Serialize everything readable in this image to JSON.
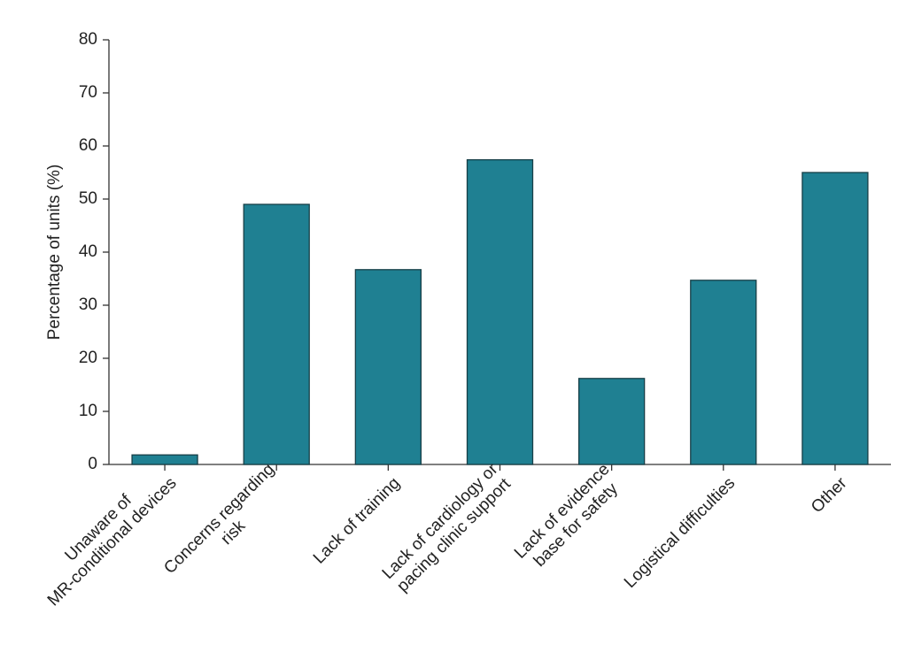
{
  "chart_data": {
    "type": "bar",
    "y_label": "Percentage of units (%)",
    "categories": [
      "Unaware of\nMR-conditional devices",
      "Concerns regarding\nrisk",
      "Lack of training",
      "Lack of cardiology or\npacing clinic support",
      "Lack of evidence\nbase for safety",
      "Logistical difficulties",
      "Other"
    ],
    "values": [
      1.8,
      49,
      36.7,
      57.4,
      16.2,
      34.7,
      55
    ],
    "color": "#1f8092",
    "ylim": [
      0,
      80
    ],
    "yticks": [
      0,
      10,
      20,
      30,
      40,
      50,
      60,
      70,
      80
    ]
  }
}
